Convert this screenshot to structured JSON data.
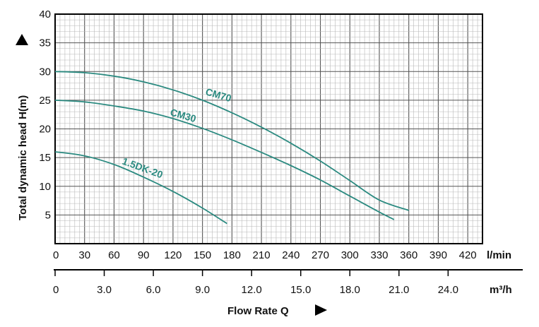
{
  "chart_data": {
    "type": "line",
    "ylabel": "Total dynamic head H(m)",
    "xlabel": "Flow Rate Q",
    "x_unit_primary": "l/min",
    "x_unit_secondary": "m³/h",
    "y_ticks": [
      "5",
      "10",
      "15",
      "20",
      "25",
      "30",
      "35",
      "40"
    ],
    "y_tick_values": [
      5,
      10,
      15,
      20,
      25,
      30,
      35,
      40
    ],
    "ylim": [
      0,
      40
    ],
    "x_ticks_primary": [
      "0",
      "30",
      "60",
      "90",
      "120",
      "150",
      "180",
      "210",
      "240",
      "270",
      "300",
      "330",
      "360",
      "390",
      "420"
    ],
    "x_tick_values_primary": [
      0,
      30,
      60,
      90,
      120,
      150,
      180,
      210,
      240,
      270,
      300,
      330,
      360,
      390,
      420
    ],
    "x_ticks_secondary": [
      "0",
      "3.0",
      "6.0",
      "9.0",
      "12.0",
      "15.0",
      "18.0",
      "21.0",
      "24.0"
    ],
    "x_tick_values_secondary": [
      0,
      3,
      6,
      9,
      12,
      15,
      18,
      21,
      24
    ],
    "xlim": [
      0,
      435
    ],
    "grid": true,
    "series": [
      {
        "name": "CM70",
        "color": "#2b8a80",
        "x": [
          0,
          30,
          60,
          90,
          120,
          150,
          180,
          210,
          240,
          270,
          300,
          330,
          360
        ],
        "y": [
          30,
          29.8,
          29.2,
          28.2,
          26.8,
          25.0,
          22.8,
          20.3,
          17.5,
          14.4,
          11.0,
          7.6,
          5.8
        ]
      },
      {
        "name": "CM30",
        "color": "#2b8a80",
        "x": [
          0,
          30,
          60,
          90,
          120,
          150,
          180,
          210,
          240,
          270,
          300,
          330,
          345
        ],
        "y": [
          25,
          24.7,
          24.0,
          23.1,
          21.8,
          20.1,
          18.1,
          15.9,
          13.6,
          11.1,
          8.3,
          5.5,
          4.2
        ]
      },
      {
        "name": "1.5DK-20",
        "color": "#2b8a80",
        "x": [
          0,
          30,
          60,
          90,
          120,
          150,
          175
        ],
        "y": [
          16,
          15.3,
          13.8,
          11.6,
          9.1,
          6.2,
          3.5
        ]
      }
    ]
  }
}
